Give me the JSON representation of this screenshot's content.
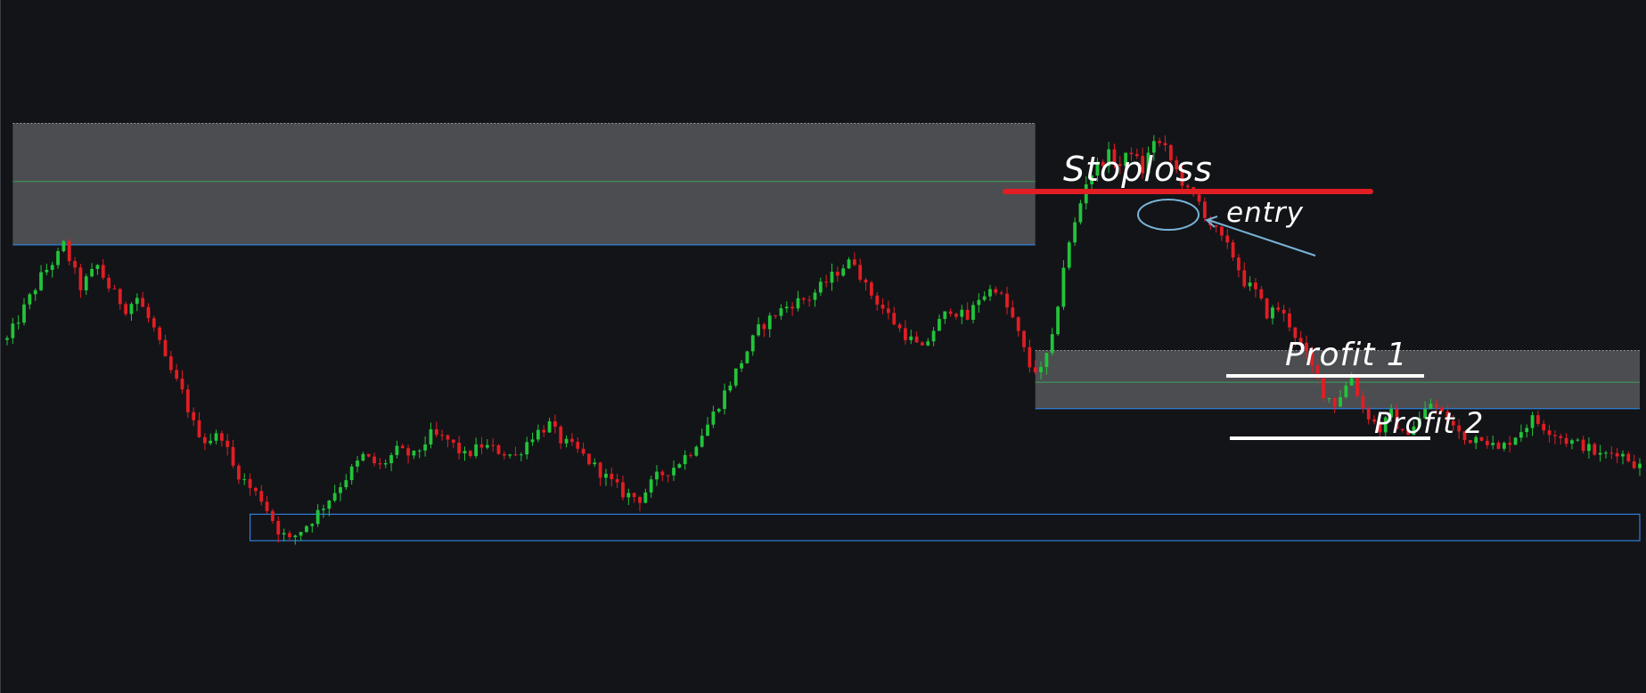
{
  "chart_data": {
    "type": "candlestick",
    "title": "",
    "xlabel": "",
    "ylabel": "",
    "ylim": [
      0,
      100
    ],
    "x_count": 290,
    "colors": {
      "background": "#131418",
      "up": "#22c43a",
      "down": "#e01e24",
      "zone_fill": "#4f5054",
      "zone_border": "#2f7fd8",
      "zone_mid": "#3aa35a",
      "stoploss": "#e01e24",
      "levels": "#ffffff",
      "entry_mark": "#78b4d8"
    },
    "close_path": [
      [
        0,
        52
      ],
      [
        4,
        60
      ],
      [
        6,
        64
      ],
      [
        9,
        68
      ],
      [
        10,
        70
      ],
      [
        13,
        62
      ],
      [
        16,
        66
      ],
      [
        18,
        62
      ],
      [
        21,
        58
      ],
      [
        23,
        60
      ],
      [
        25,
        56
      ],
      [
        26,
        54
      ],
      [
        28,
        48
      ],
      [
        31,
        42
      ],
      [
        33,
        36
      ],
      [
        35,
        33
      ],
      [
        38,
        34
      ],
      [
        40,
        28
      ],
      [
        43,
        24
      ],
      [
        45,
        22
      ],
      [
        48,
        16
      ],
      [
        50,
        14
      ],
      [
        54,
        18
      ],
      [
        57,
        22
      ],
      [
        60,
        26
      ],
      [
        63,
        30
      ],
      [
        66,
        28
      ],
      [
        69,
        31
      ],
      [
        72,
        30
      ],
      [
        75,
        34
      ],
      [
        78,
        33
      ],
      [
        81,
        30
      ],
      [
        84,
        32
      ],
      [
        87,
        31
      ],
      [
        90,
        30
      ],
      [
        93,
        34
      ],
      [
        96,
        36
      ],
      [
        98,
        33
      ],
      [
        101,
        31
      ],
      [
        104,
        28
      ],
      [
        107,
        25
      ],
      [
        109,
        23
      ],
      [
        112,
        22
      ],
      [
        115,
        26
      ],
      [
        118,
        28
      ],
      [
        121,
        31
      ],
      [
        124,
        36
      ],
      [
        127,
        42
      ],
      [
        130,
        48
      ],
      [
        133,
        54
      ],
      [
        136,
        57
      ],
      [
        139,
        59
      ],
      [
        142,
        60
      ],
      [
        145,
        63
      ],
      [
        148,
        66
      ],
      [
        150,
        67
      ],
      [
        152,
        62
      ],
      [
        155,
        58
      ],
      [
        158,
        54
      ],
      [
        160,
        52
      ],
      [
        162,
        50
      ],
      [
        164,
        54
      ],
      [
        167,
        58
      ],
      [
        170,
        56
      ],
      [
        172,
        60
      ],
      [
        175,
        62
      ],
      [
        178,
        56
      ],
      [
        181,
        47
      ],
      [
        183,
        46
      ],
      [
        185,
        52
      ],
      [
        187,
        66
      ],
      [
        189,
        74
      ],
      [
        191,
        82
      ],
      [
        193,
        85
      ],
      [
        195,
        87
      ],
      [
        197,
        85
      ],
      [
        199,
        88
      ],
      [
        201,
        84
      ],
      [
        203,
        90
      ],
      [
        205,
        88
      ],
      [
        207,
        84
      ],
      [
        209,
        80
      ],
      [
        211,
        78
      ],
      [
        213,
        74
      ],
      [
        215,
        71
      ],
      [
        217,
        68
      ],
      [
        219,
        63
      ],
      [
        221,
        61
      ],
      [
        223,
        57
      ],
      [
        225,
        58
      ],
      [
        227,
        55
      ],
      [
        230,
        49
      ],
      [
        233,
        42
      ],
      [
        235,
        40
      ],
      [
        238,
        45
      ],
      [
        240,
        39
      ],
      [
        243,
        35
      ],
      [
        245,
        38
      ],
      [
        247,
        34
      ],
      [
        250,
        37
      ],
      [
        252,
        40
      ],
      [
        255,
        37
      ],
      [
        258,
        33
      ],
      [
        261,
        34
      ],
      [
        264,
        31
      ],
      [
        267,
        34
      ],
      [
        270,
        37
      ],
      [
        273,
        35
      ],
      [
        276,
        33
      ],
      [
        279,
        32
      ],
      [
        282,
        30
      ],
      [
        285,
        31
      ],
      [
        289,
        28
      ]
    ],
    "zones": [
      {
        "name": "supply-zone-top",
        "x": [
          1,
          182
        ],
        "y": [
          70,
          93
        ],
        "mid": 82
      },
      {
        "name": "supply-zone-right",
        "x": [
          182,
          289
        ],
        "y": [
          39,
          50
        ],
        "mid": 44
      },
      {
        "name": "demand-zone-bottom",
        "x": [
          43,
          289
        ],
        "y": [
          14,
          19
        ],
        "mid": null
      }
    ],
    "levels": [
      {
        "label": "Stoploss",
        "y": 82
      },
      {
        "label": "Profit 1",
        "y": 51
      },
      {
        "label": "Profit 2",
        "y": 40
      }
    ],
    "annotations": [
      {
        "label": "entry",
        "x": 205,
        "y": 87
      }
    ]
  }
}
